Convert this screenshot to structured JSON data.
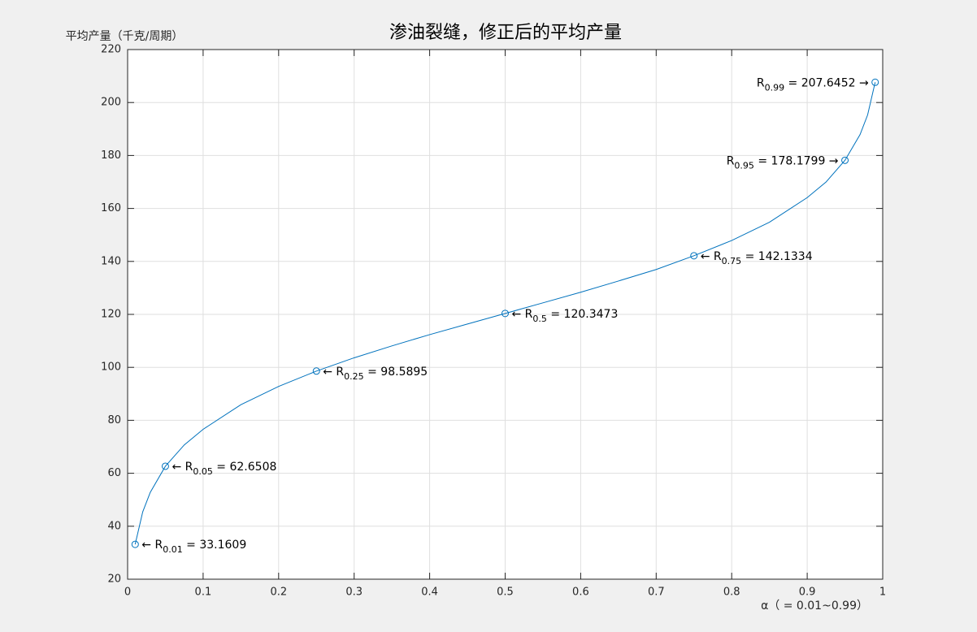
{
  "chart_data": {
    "type": "line",
    "title": "渗油裂缝，修正后的平均产量",
    "ylabel": "平均产量（千克/周期）",
    "xlabel": "α（ = 0.01~0.99）",
    "xlim": [
      0,
      1
    ],
    "ylim": [
      20,
      220
    ],
    "xticks": [
      0,
      0.1,
      0.2,
      0.3,
      0.4,
      0.5,
      0.6,
      0.7,
      0.8,
      0.9,
      1
    ],
    "yticks": [
      20,
      40,
      60,
      80,
      100,
      120,
      140,
      160,
      180,
      200,
      220
    ],
    "grid": true,
    "series": [
      {
        "color": "#0072bd",
        "marker": false,
        "x": [
          0.01,
          0.02,
          0.03,
          0.05,
          0.075,
          0.1,
          0.15,
          0.2,
          0.25,
          0.3,
          0.35,
          0.4,
          0.45,
          0.5,
          0.55,
          0.6,
          0.65,
          0.7,
          0.75,
          0.8,
          0.85,
          0.9,
          0.925,
          0.95,
          0.97,
          0.98,
          0.99
        ],
        "values": [
          33.1609,
          45.4,
          52.8,
          62.6508,
          70.7,
          76.6,
          85.9,
          92.8,
          98.5895,
          103.6,
          108.1,
          112.35,
          116.35,
          120.3473,
          124.35,
          128.35,
          132.6,
          136.95,
          142.1334,
          147.9,
          154.8,
          164.1,
          170.0,
          178.1799,
          187.9,
          195.3,
          207.6452
        ]
      },
      {
        "color": "#0072bd",
        "marker": true,
        "x": [
          0.01,
          0.05,
          0.25,
          0.5,
          0.75,
          0.95,
          0.99
        ],
        "values": [
          33.1609,
          62.6508,
          98.5895,
          120.3473,
          142.1334,
          178.1799,
          207.6452
        ]
      }
    ],
    "annotations": [
      {
        "before": "← R",
        "sub": "0.01",
        "after": " = 33.1609",
        "side": "right"
      },
      {
        "before": "← R",
        "sub": "0.05",
        "after": " = 62.6508",
        "side": "right"
      },
      {
        "before": "← R",
        "sub": "0.25",
        "after": " = 98.5895",
        "side": "right"
      },
      {
        "before": "← R",
        "sub": "0.5",
        "after": " = 120.3473",
        "side": "right"
      },
      {
        "before": "← R",
        "sub": "0.75",
        "after": " = 142.1334",
        "side": "right"
      },
      {
        "before": "R",
        "sub": "0.95",
        "after": " = 178.1799 →",
        "side": "left"
      },
      {
        "before": "R",
        "sub": "0.99",
        "after": " = 207.6452 →",
        "side": "left"
      }
    ]
  }
}
